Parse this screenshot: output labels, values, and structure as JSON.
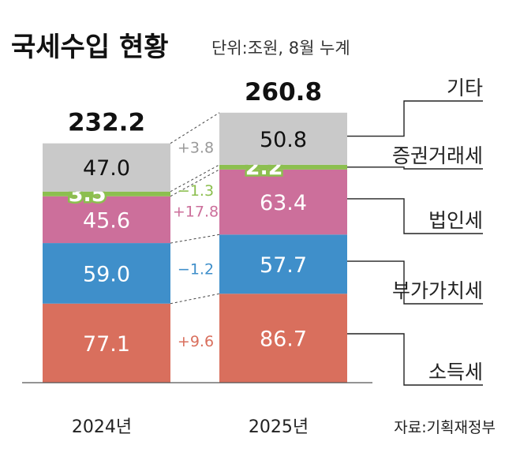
{
  "title": "국세수입 현황",
  "unit": "단위:조원, 8월 누계",
  "source": "자료:기획재정부",
  "chart_data": {
    "type": "bar",
    "stacked": true,
    "categories": [
      "2024년",
      "2025년"
    ],
    "totals": [
      "232.2",
      "260.8"
    ],
    "series": [
      {
        "name": "소득세",
        "values": [
          77.1,
          86.7
        ],
        "labels": [
          "77.1",
          "86.7"
        ],
        "change": "+9.6",
        "color": "#d96f5d",
        "change_color": "#d96f5d",
        "label_color": "#ffffff"
      },
      {
        "name": "부가가치세",
        "values": [
          59.0,
          57.7
        ],
        "labels": [
          "59.0",
          "57.7"
        ],
        "change": "−1.2",
        "color": "#3f8fca",
        "change_color": "#3f8fca",
        "label_color": "#ffffff"
      },
      {
        "name": "법인세",
        "values": [
          45.6,
          63.4
        ],
        "labels": [
          "45.6",
          "63.4"
        ],
        "change": "+17.8",
        "color": "#cc6f9b",
        "change_color": "#cc6f9b",
        "label_color": "#ffffff"
      },
      {
        "name": "증권거래세",
        "values": [
          3.5,
          2.2
        ],
        "labels": [
          "3.5",
          "2.2"
        ],
        "change": "−1.3",
        "color": "#8cbf4f",
        "change_color": "#8cbf4f",
        "label_color": "#ffffff"
      },
      {
        "name": "기타",
        "values": [
          47.0,
          50.8
        ],
        "labels": [
          "47.0",
          "50.8"
        ],
        "change": "+3.8",
        "color": "#c9c9c9",
        "change_color": "#9a9a9a",
        "label_color": "#111111"
      }
    ]
  }
}
